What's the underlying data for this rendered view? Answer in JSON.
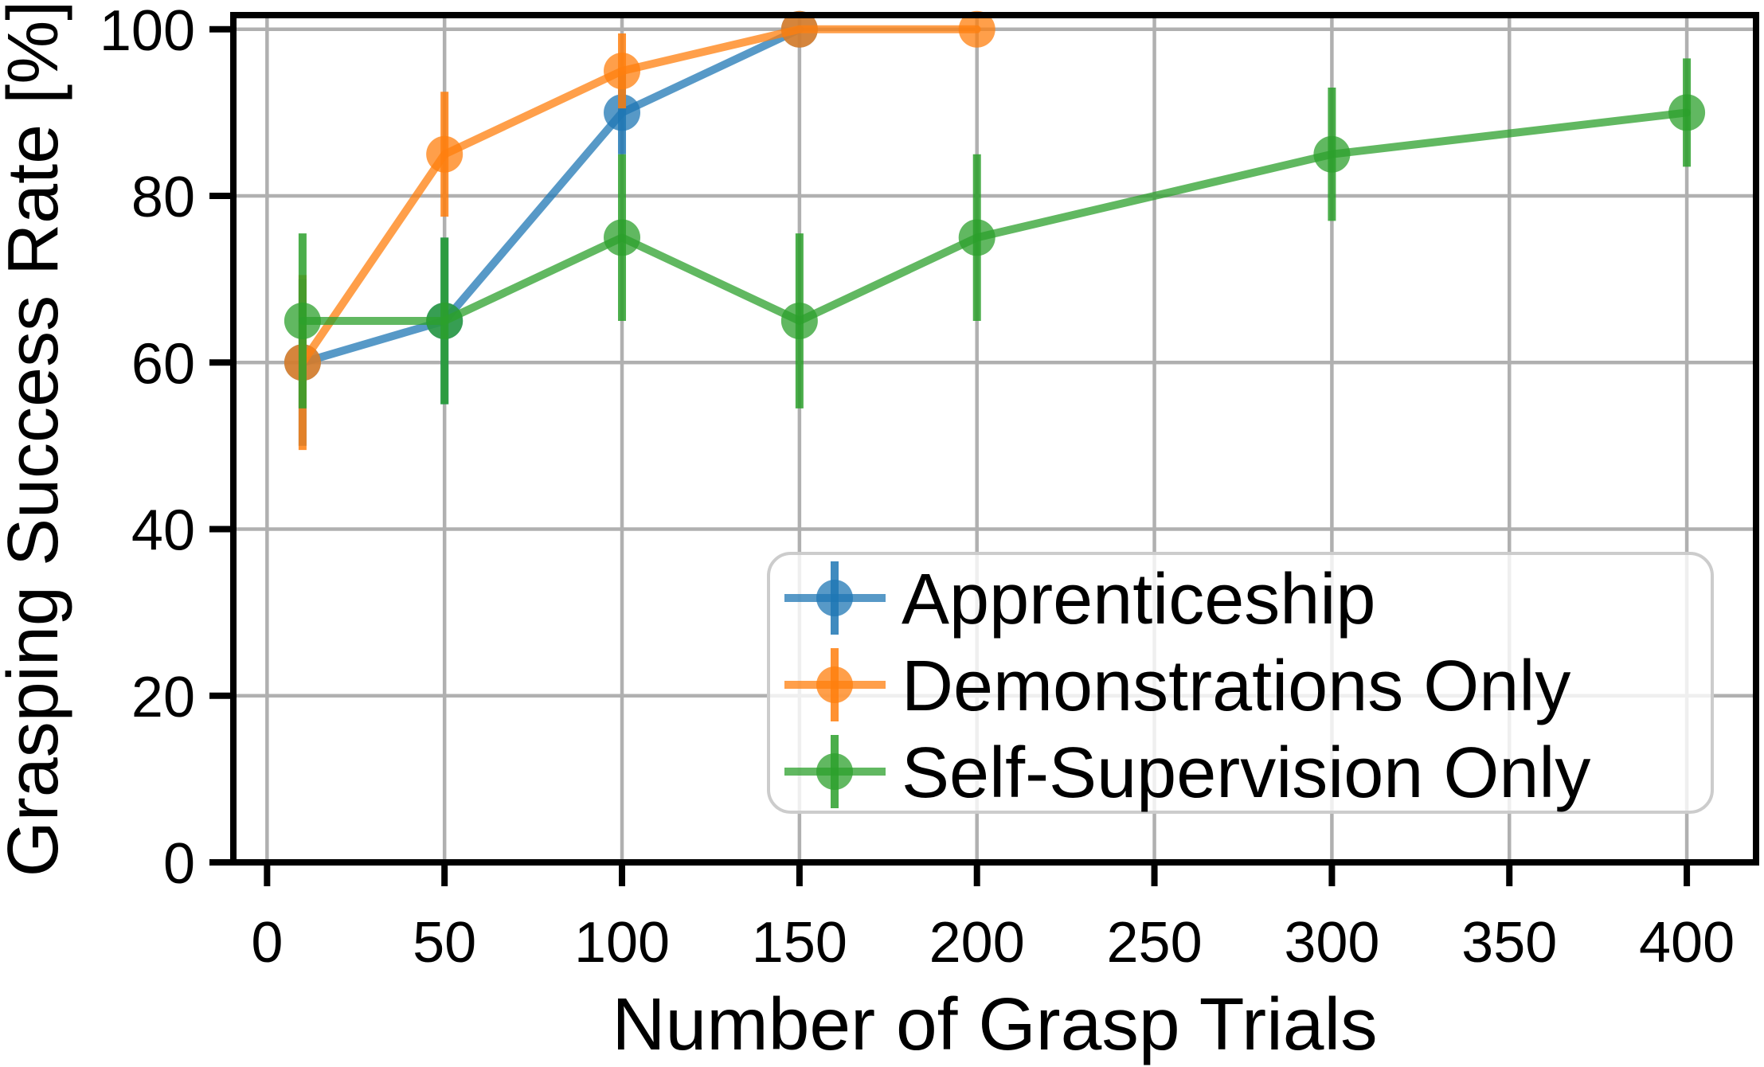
{
  "chart_data": {
    "type": "line",
    "title": "",
    "xlabel": "Number of Grasp Trials",
    "ylabel": "Grasping Success Rate [%]",
    "xlim": [
      -9.5,
      419.5
    ],
    "ylim": [
      0,
      101.7
    ],
    "xticks": [
      0,
      50,
      100,
      150,
      200,
      250,
      300,
      350,
      400
    ],
    "yticks": [
      0,
      20,
      40,
      60,
      80,
      100
    ],
    "grid": true,
    "legend_position": "lower right",
    "series": [
      {
        "name": "Apprenticeship",
        "color": "#1f77b4",
        "x": [
          10,
          50,
          100,
          150
        ],
        "y": [
          60,
          65,
          90,
          100
        ],
        "yerr": [
          10,
          10,
          5,
          0
        ]
      },
      {
        "name": "Demonstrations Only",
        "color": "#ff7f0e",
        "x": [
          10,
          50,
          100,
          150,
          200
        ],
        "y": [
          60,
          85,
          95,
          100,
          100
        ],
        "yerr": [
          10.5,
          7.5,
          4.5,
          0,
          0
        ]
      },
      {
        "name": "Self-Supervision Only",
        "color": "#2ca02c",
        "x": [
          10,
          50,
          100,
          150,
          200,
          300,
          400
        ],
        "y": [
          65,
          65,
          75,
          65,
          75,
          85,
          90
        ],
        "yerr": [
          10.5,
          10,
          10,
          10.5,
          10,
          8,
          6.5
        ]
      }
    ],
    "style": {
      "grid_color": "#b0b0b0",
      "spine_color": "#000000",
      "tick_color": "#000000",
      "text_color": "#000000",
      "line_alpha": 0.75,
      "marker_alpha": 0.75,
      "errorbar_alpha": 0.85,
      "legend_border_color": "#cccccc",
      "legend_bg_color": "#ffffff",
      "legend_bg_alpha": 0.8
    }
  }
}
